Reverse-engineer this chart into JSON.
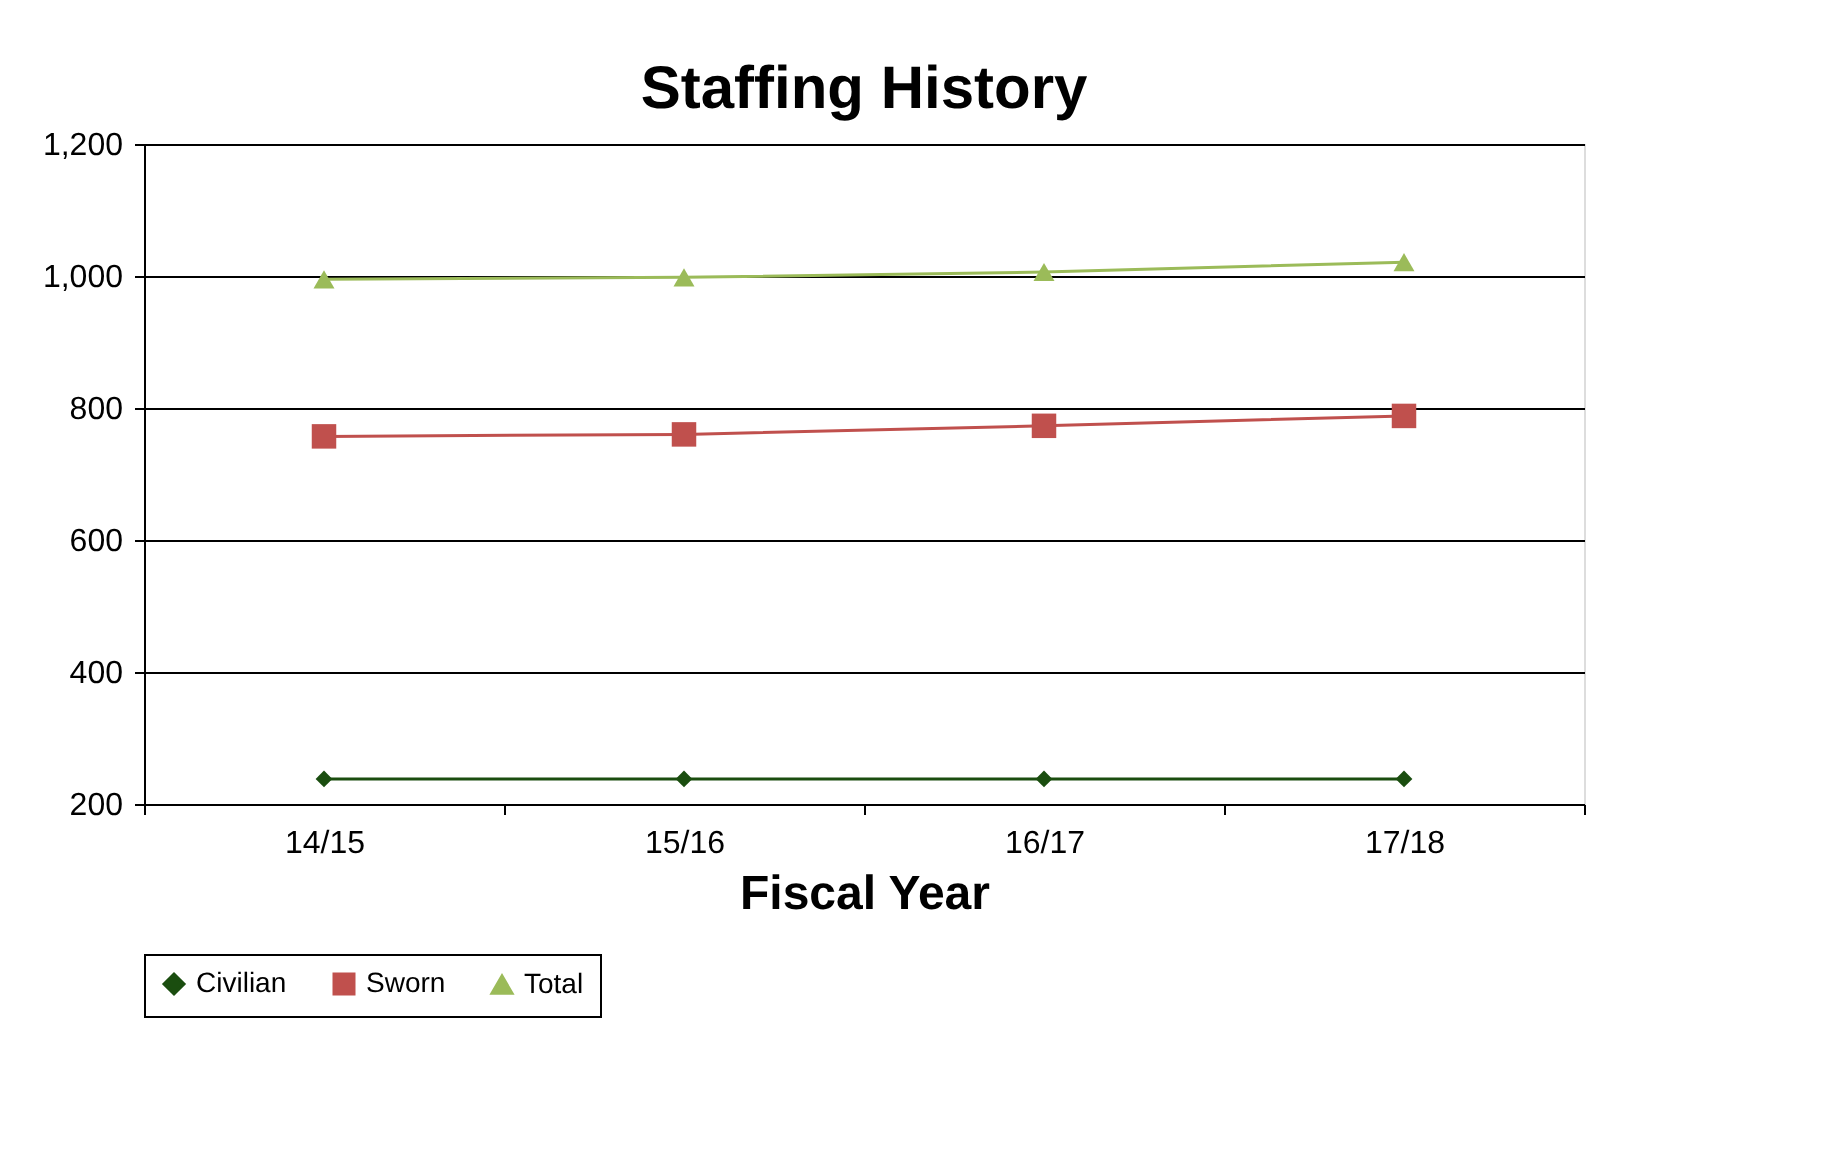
{
  "chart_data": {
    "type": "line",
    "title": "Staffing History",
    "xlabel": "Fiscal Year",
    "categories": [
      "14/15",
      "15/16",
      "16/17",
      "17/18"
    ],
    "series": [
      {
        "name": "Civilian",
        "color": "#1a4d0f",
        "marker": "diamond",
        "values": [
          238,
          238,
          238,
          238
        ]
      },
      {
        "name": "Sworn",
        "color": "#c0504d",
        "marker": "square",
        "values": [
          757,
          760,
          773,
          788
        ]
      },
      {
        "name": "Total",
        "color": "#9bbb59",
        "marker": "triangle",
        "values": [
          995,
          998,
          1006,
          1021
        ]
      }
    ],
    "ylim": [
      200,
      1200
    ],
    "yticks": [
      {
        "value": 200,
        "label": "200"
      },
      {
        "value": 400,
        "label": "400"
      },
      {
        "value": 600,
        "label": "600"
      },
      {
        "value": 800,
        "label": "800"
      },
      {
        "value": 1000,
        "label": "1,000"
      },
      {
        "value": 1200,
        "label": "1,200"
      }
    ],
    "grid": "y",
    "legend": "bottom",
    "line_style": "solid"
  }
}
